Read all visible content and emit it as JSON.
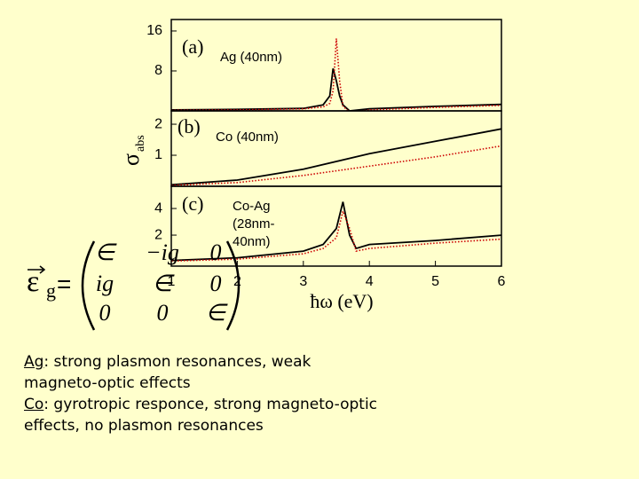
{
  "chart_data": [
    {
      "type": "line",
      "label": "(a)",
      "annotation": [
        "Ag (40nm)"
      ],
      "x": [
        1,
        2,
        3,
        3.3,
        3.4,
        3.45,
        3.5,
        3.55,
        3.6,
        3.7,
        4,
        5,
        6
      ],
      "series": [
        {
          "color": "#000000",
          "style": "solid",
          "values": [
            0.2,
            0.3,
            0.5,
            1.2,
            3,
            8.5,
            6,
            3,
            1.2,
            0,
            0.4,
            0.9,
            1.3
          ]
        },
        {
          "color": "#cc0000",
          "style": "dotted",
          "values": [
            0.1,
            0.2,
            0.4,
            0.8,
            1.5,
            4,
            14.5,
            6,
            1,
            -0.3,
            0.2,
            0.7,
            1.1
          ]
        }
      ],
      "xlim": [
        1,
        6
      ],
      "ylim": [
        0,
        18.3
      ],
      "yticks": [
        8,
        16
      ]
    },
    {
      "type": "line",
      "label": "(b)",
      "annotation": [
        "Co (40nm)"
      ],
      "ylabel": "σ",
      "ylabel_sub": "abs",
      "x": [
        1,
        2,
        3,
        4,
        5,
        6
      ],
      "series": [
        {
          "color": "#000000",
          "style": "solid",
          "values": [
            0.05,
            0.2,
            0.55,
            1.05,
            1.45,
            1.85
          ]
        },
        {
          "color": "#cc0000",
          "style": "dotted",
          "values": [
            0.03,
            0.12,
            0.35,
            0.65,
            0.95,
            1.3
          ]
        }
      ],
      "xlim": [
        1,
        6
      ],
      "ylim": [
        0,
        2.43
      ],
      "yticks": [
        1,
        2
      ]
    },
    {
      "type": "line",
      "label": "(c)",
      "annotation": [
        "Co-Ag",
        "(28nm-",
        "40nm)"
      ],
      "xlabel": "ħω (eV)",
      "x": [
        1,
        2,
        3,
        3.3,
        3.5,
        3.6,
        3.7,
        3.8,
        4,
        5,
        6
      ],
      "series": [
        {
          "color": "#000000",
          "style": "solid",
          "values": [
            0.1,
            0.3,
            0.8,
            1.3,
            2.5,
            4.5,
            2,
            1,
            1.3,
            1.6,
            2.0
          ]
        },
        {
          "color": "#cc0000",
          "style": "dotted",
          "values": [
            0.05,
            0.2,
            0.6,
            1,
            1.8,
            3.8,
            2.5,
            0.8,
            1.0,
            1.4,
            1.7
          ]
        }
      ],
      "xlim": [
        1,
        6
      ],
      "ylim": [
        -0.33,
        5.67
      ],
      "yticks": [
        2,
        4
      ],
      "xticks": [
        1,
        2,
        3,
        4,
        5,
        6
      ]
    }
  ],
  "matrix": {
    "lhs": "ε",
    "sub": "g",
    "rows": [
      [
        "∈",
        "−ig",
        "0"
      ],
      [
        "ig",
        "∈",
        "0"
      ],
      [
        "0",
        "0",
        "∈"
      ]
    ]
  },
  "notes": [
    {
      "term": "Ag",
      "text": ": strong plasmon resonances, weak magneto-optic effects"
    },
    {
      "term": "Co",
      "text": ": gyrotropic responce, strong magneto-optic effects, no plasmon resonances"
    }
  ]
}
